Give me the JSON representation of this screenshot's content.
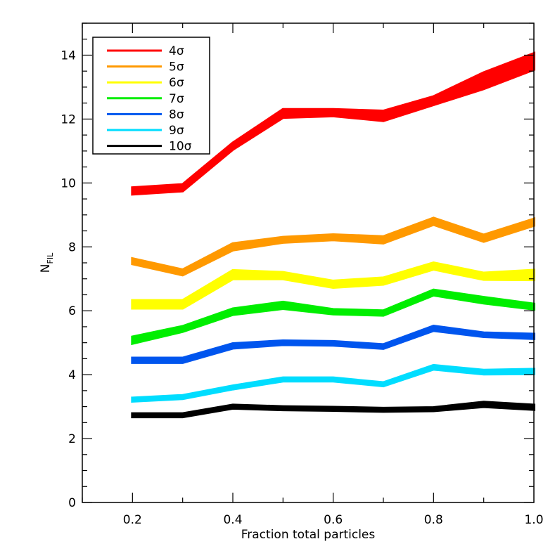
{
  "chart_data": {
    "type": "line",
    "title": "",
    "xlabel": "Fraction total particles",
    "ylabel": "N",
    "ylabel_subscript": "FIL",
    "xlim": [
      0.1,
      1.0
    ],
    "ylim": [
      0,
      15
    ],
    "xticks": [
      "0.2",
      "0.4",
      "0.6",
      "0.8",
      "1.0"
    ],
    "yticks": [
      "0",
      "2",
      "4",
      "6",
      "8",
      "10",
      "12",
      "14"
    ],
    "x": [
      0.2,
      0.3,
      0.4,
      0.5,
      0.6,
      0.7,
      0.8,
      0.9,
      1.0
    ],
    "grid": false,
    "legend_position": "top-left",
    "series": [
      {
        "name": "4σ",
        "color": "#ff0000",
        "values": [
          9.75,
          9.85,
          11.15,
          12.2,
          12.2,
          12.1,
          12.55,
          13.2,
          13.8
        ],
        "lower": [
          9.65,
          9.75,
          11.05,
          12.05,
          12.1,
          11.95,
          12.45,
          12.95,
          13.55
        ],
        "upper": [
          9.85,
          9.95,
          11.25,
          12.3,
          12.3,
          12.25,
          12.7,
          13.45,
          14.05
        ]
      },
      {
        "name": "5σ",
        "color": "#ff9900",
        "values": [
          7.55,
          7.2,
          8.0,
          8.22,
          8.3,
          8.22,
          8.8,
          8.27,
          8.77
        ],
        "lower": [
          7.47,
          7.12,
          7.9,
          8.14,
          8.22,
          8.12,
          8.7,
          8.17,
          8.67
        ],
        "upper": [
          7.63,
          7.28,
          8.1,
          8.3,
          8.38,
          8.32,
          8.9,
          8.37,
          8.87
        ]
      },
      {
        "name": "6σ",
        "color": "#ffff00",
        "values": [
          6.2,
          6.2,
          7.13,
          7.1,
          6.83,
          6.93,
          7.4,
          7.08,
          7.12
        ],
        "lower": [
          6.08,
          6.08,
          7.0,
          7.0,
          6.73,
          6.83,
          7.3,
          6.98,
          6.97
        ],
        "upper": [
          6.32,
          6.32,
          7.26,
          7.2,
          6.93,
          7.03,
          7.5,
          7.18,
          7.27
        ]
      },
      {
        "name": "7σ",
        "color": "#00ee00",
        "values": [
          5.08,
          5.43,
          5.97,
          6.17,
          5.97,
          5.93,
          6.57,
          6.33,
          6.13
        ],
        "lower": [
          4.98,
          5.35,
          5.88,
          6.07,
          5.9,
          5.86,
          6.49,
          6.24,
          6.05
        ],
        "upper": [
          5.18,
          5.51,
          6.06,
          6.27,
          6.04,
          6.0,
          6.65,
          6.42,
          6.21
        ]
      },
      {
        "name": "8σ",
        "color": "#0055ee",
        "values": [
          4.45,
          4.45,
          4.9,
          5.0,
          4.98,
          4.88,
          5.45,
          5.25,
          5.2
        ],
        "lower": [
          4.38,
          4.38,
          4.83,
          4.94,
          4.92,
          4.82,
          5.38,
          5.19,
          5.13
        ],
        "upper": [
          4.52,
          4.52,
          4.97,
          5.06,
          5.04,
          4.94,
          5.52,
          5.31,
          5.27
        ]
      },
      {
        "name": "9σ",
        "color": "#00ddff",
        "values": [
          3.22,
          3.3,
          3.6,
          3.85,
          3.85,
          3.7,
          4.23,
          4.08,
          4.1
        ],
        "lower": [
          3.17,
          3.25,
          3.55,
          3.8,
          3.8,
          3.65,
          4.17,
          4.02,
          4.03
        ],
        "upper": [
          3.27,
          3.35,
          3.65,
          3.9,
          3.9,
          3.75,
          4.29,
          4.14,
          4.17
        ]
      },
      {
        "name": "10σ",
        "color": "#000000",
        "values": [
          2.73,
          2.73,
          3.0,
          2.95,
          2.93,
          2.9,
          2.92,
          3.07,
          2.98
        ],
        "lower": [
          2.68,
          2.68,
          2.95,
          2.9,
          2.88,
          2.85,
          2.87,
          3.0,
          2.91
        ],
        "upper": [
          2.78,
          2.78,
          3.05,
          3.0,
          2.98,
          2.95,
          2.97,
          3.14,
          3.05
        ]
      }
    ]
  }
}
